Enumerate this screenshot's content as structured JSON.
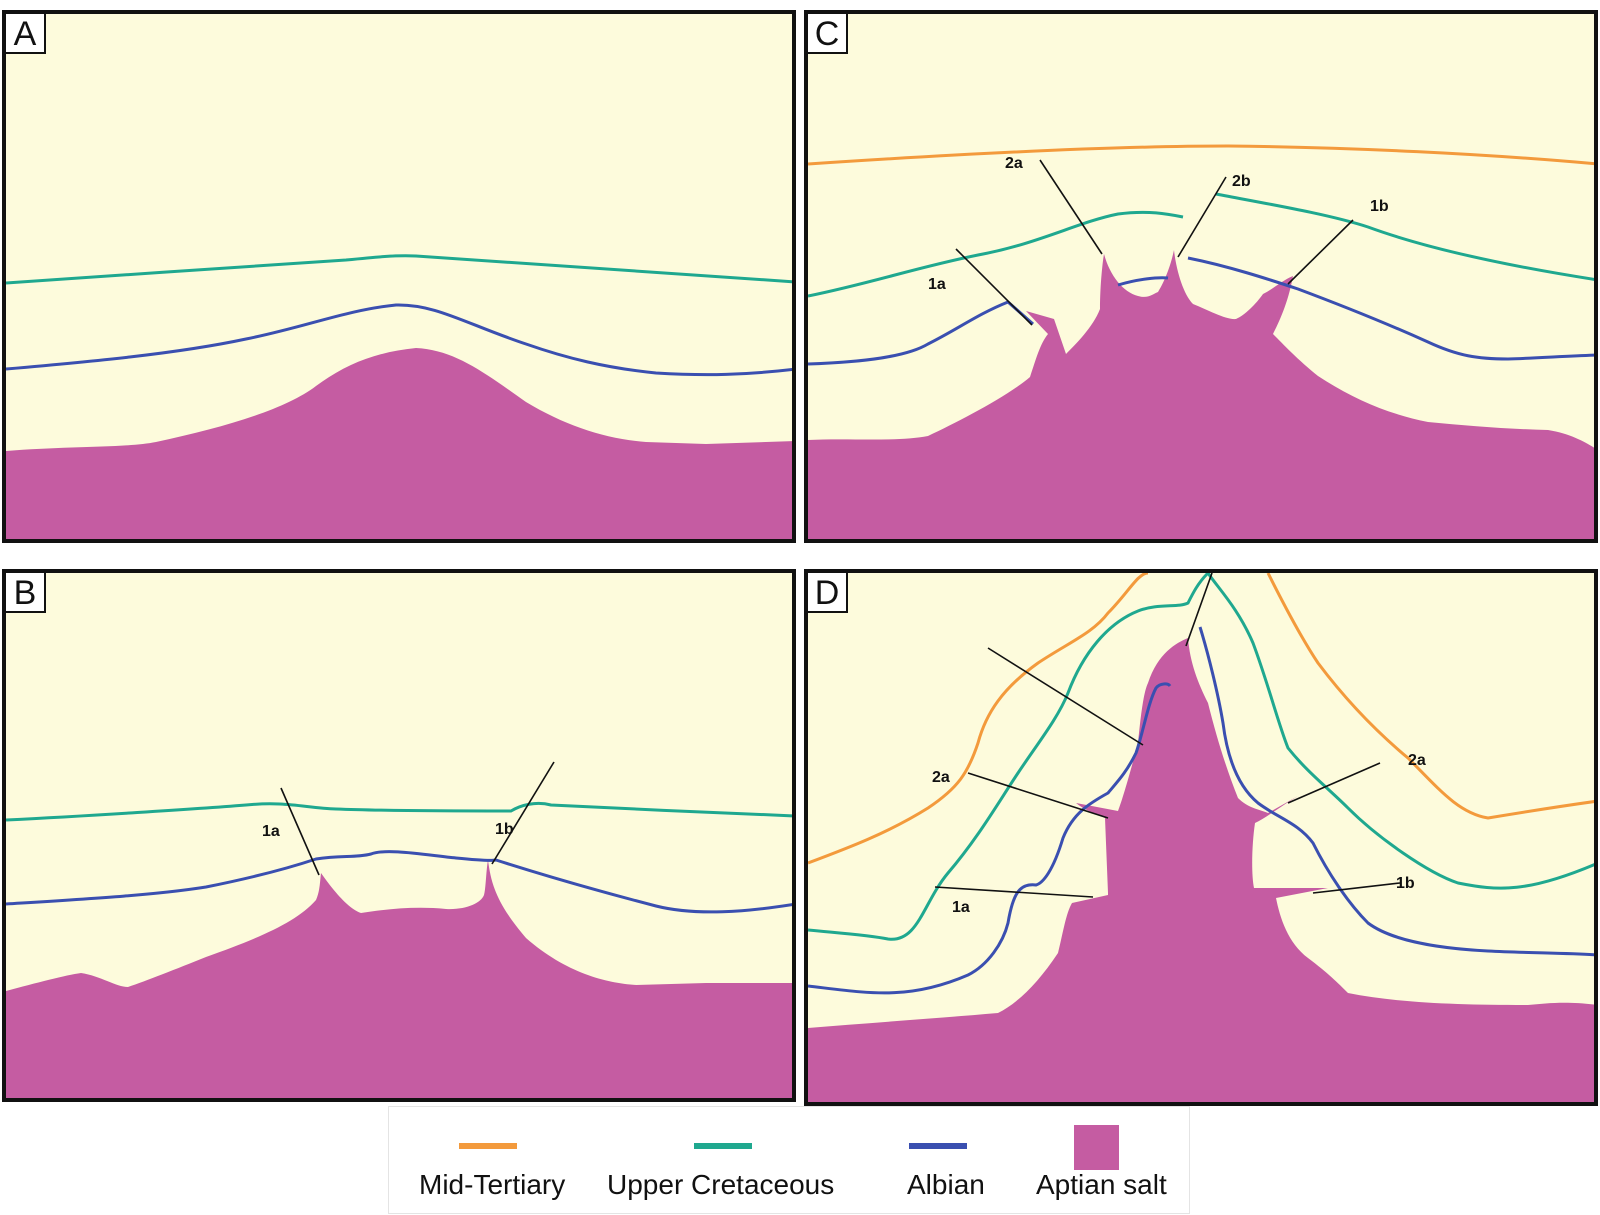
{
  "panels": [
    {
      "id": "A",
      "label": "A"
    },
    {
      "id": "B",
      "label": "B",
      "faults": [
        "1a",
        "1b"
      ]
    },
    {
      "id": "C",
      "label": "C",
      "faults": [
        "1a",
        "1b",
        "2a",
        "2b"
      ]
    },
    {
      "id": "D",
      "label": "D",
      "faults": [
        "1a",
        "1b",
        "2a",
        "2a"
      ]
    }
  ],
  "legend": [
    {
      "label": "Mid-Tertiary",
      "color": "#f39a3c",
      "kind": "line"
    },
    {
      "label": "Upper Cretaceous",
      "color": "#1fa88f",
      "kind": "line"
    },
    {
      "label": "Albian",
      "color": "#3a4fb0",
      "kind": "line"
    },
    {
      "label": "Aptian salt",
      "color": "#c55ca2",
      "kind": "swatch"
    }
  ],
  "colors": {
    "background": "#fdfbdc",
    "salt": "#c55ca2",
    "mid_tertiary": "#f39a3c",
    "upper_cretaceous": "#1fa88f",
    "albian": "#3a4fb0",
    "fault": "#111111"
  }
}
